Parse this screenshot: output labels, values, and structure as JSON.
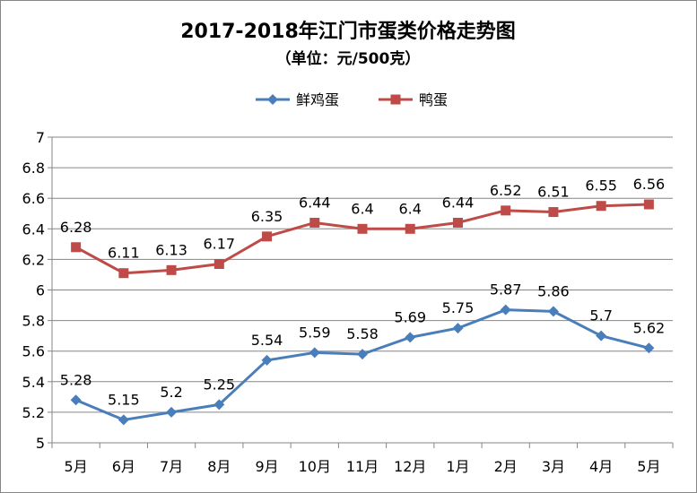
{
  "chart_data": {
    "type": "line",
    "title": "2017-2018年江门市蛋类价格走势图",
    "subtitle": "（单位：元/500克）",
    "categories": [
      "5月",
      "6月",
      "7月",
      "8月",
      "9月",
      "10月",
      "11月",
      "12月",
      "1月",
      "2月",
      "3月",
      "4月",
      "5月"
    ],
    "ylim": [
      5,
      7
    ],
    "yticks": [
      "5",
      "5.2",
      "5.4",
      "5.6",
      "5.8",
      "6",
      "6.2",
      "6.4",
      "6.6",
      "6.8",
      "7"
    ],
    "grid": true,
    "legend_position": "top-center",
    "series": [
      {
        "name": "鲜鸡蛋",
        "color": "#4a7ebb",
        "marker": "diamond",
        "values": [
          5.28,
          5.15,
          5.2,
          5.25,
          5.54,
          5.59,
          5.58,
          5.69,
          5.75,
          5.87,
          5.86,
          5.7,
          5.62
        ],
        "labels": [
          "5.28",
          "5.15",
          "5.2",
          "5.25",
          "5.54",
          "5.59",
          "5.58",
          "5.69",
          "5.75",
          "5.87",
          "5.86",
          "5.7",
          "5.62"
        ]
      },
      {
        "name": "鸭蛋",
        "color": "#be4b48",
        "marker": "square",
        "values": [
          6.28,
          6.11,
          6.13,
          6.17,
          6.35,
          6.44,
          6.4,
          6.4,
          6.44,
          6.52,
          6.51,
          6.55,
          6.56
        ],
        "labels": [
          "6.28",
          "6.11",
          "6.13",
          "6.17",
          "6.35",
          "6.44",
          "6.4",
          "6.4",
          "6.44",
          "6.52",
          "6.51",
          "6.55",
          "6.56"
        ]
      }
    ]
  }
}
